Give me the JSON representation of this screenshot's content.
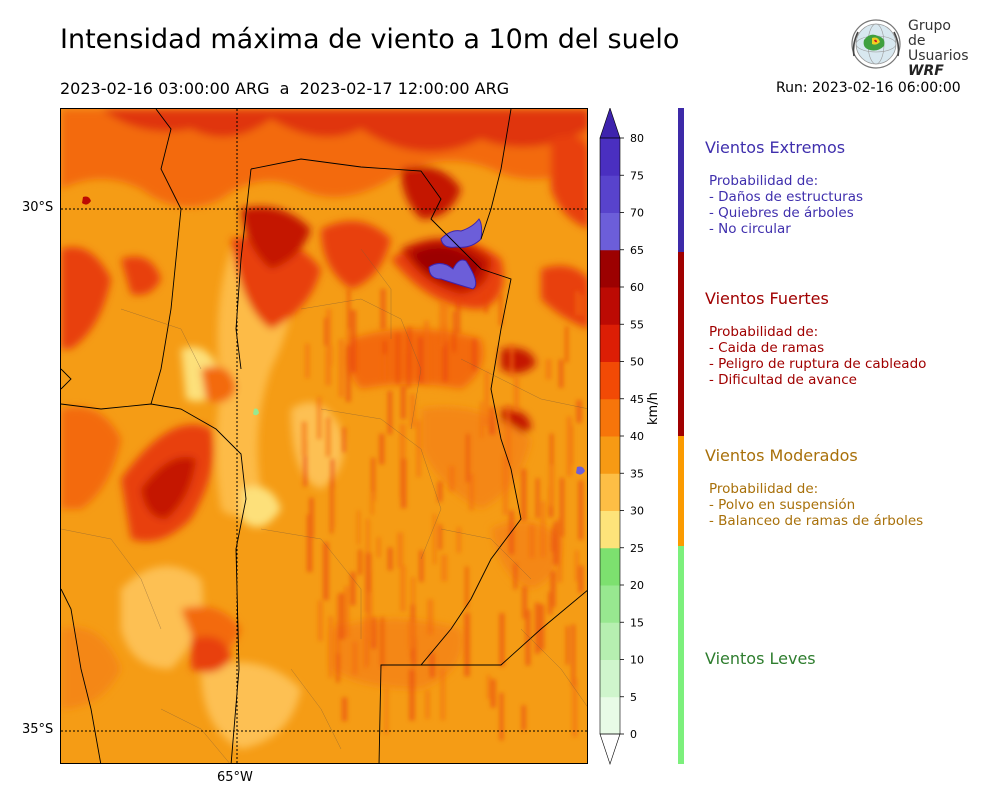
{
  "header": {
    "title": "Intensidad máxima de viento a 10m del suelo",
    "period": "2023-02-16 03:00:00 ARG  a  2023-02-17 12:00:00 ARG",
    "run": "Run: 2023-02-16 06:00:00"
  },
  "logo": {
    "line1": "Grupo de",
    "line2": "Usuarios",
    "line3": "WRF"
  },
  "map": {
    "lat_labels": [
      "30°S",
      "35°S"
    ],
    "lon_labels": [
      "65°W"
    ]
  },
  "colorbar": {
    "unit": "km/h",
    "ticks": [
      "0",
      "5",
      "10",
      "15",
      "20",
      "25",
      "30",
      "35",
      "40",
      "45",
      "50",
      "55",
      "60",
      "65",
      "70",
      "75",
      "80"
    ],
    "colors": [
      "#e8fbe6",
      "#cff5cc",
      "#b6efb0",
      "#98e890",
      "#7de06f",
      "#fde37a",
      "#fdbe45",
      "#f79a14",
      "#f7750a",
      "#f24a05",
      "#dc1e05",
      "#bc0a03",
      "#9c0101",
      "#6c5ed9",
      "#5843cc",
      "#4a2fc0",
      "#3e23ad"
    ]
  },
  "categories": [
    {
      "title": "Vientos Extremos",
      "color": "#3f2fad",
      "desc": [
        "Probabilidad de:",
        "- Daños de estructuras",
        "- Quiebres de árboles",
        "- No circular"
      ]
    },
    {
      "title": "Vientos Fuertes",
      "color": "#a00000",
      "desc": [
        "Probabilidad de:",
        "- Caida de ramas",
        "- Peligro de ruptura de cableado",
        "- Dificultad de avance"
      ]
    },
    {
      "title": "Vientos Moderados",
      "color": "#a8700a",
      "desc": [
        "Probabilidad de:",
        "- Polvo en suspensión",
        "- Balanceo de ramas de árboles"
      ]
    },
    {
      "title": "Vientos Leves",
      "color": "#2e7d2e",
      "desc": []
    }
  ],
  "category_bar_colors": [
    "#3d2aa8",
    "#a00000",
    "#fb9b00",
    "#7cf07c"
  ]
}
